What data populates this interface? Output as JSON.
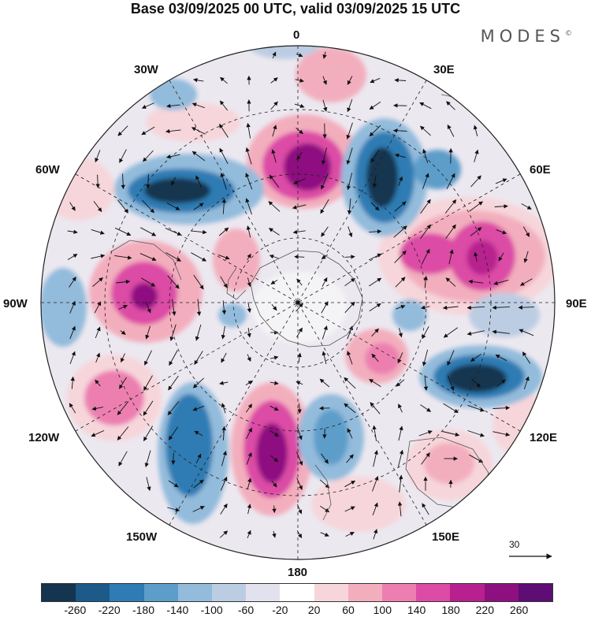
{
  "title": "Base 03/09/2025 00 UTC, valid 03/09/2025 15 UTC",
  "brand": "MODES",
  "brand_mark": "©",
  "longitude_labels": {
    "top": "0",
    "top_left": "30W",
    "top_right": "30E",
    "upper_left": "60W",
    "upper_right": "60E",
    "left": "90W",
    "right": "90E",
    "lower_left": "120W",
    "lower_right": "120E",
    "bottom_left": "150W",
    "bottom_right": "150E",
    "bottom": "180"
  },
  "vector_scale": {
    "label": "30"
  },
  "colorbar": {
    "ticks": [
      "-260",
      "-220",
      "-180",
      "-140",
      "-100",
      "-60",
      "-20",
      "20",
      "60",
      "100",
      "140",
      "180",
      "220",
      "260"
    ],
    "colors": [
      "#14344f",
      "#1c5a8a",
      "#2f7bb3",
      "#5d9dca",
      "#93bbdb",
      "#bccde3",
      "#e2e2ee",
      "#ffffff",
      "#f6d6da",
      "#f3aebd",
      "#ec7fb0",
      "#dc4ba5",
      "#b8208f",
      "#8e1080",
      "#5e0d74"
    ]
  },
  "colors": {
    "coast": "#555555",
    "grid": "#222222",
    "arrow": "#111111"
  }
}
